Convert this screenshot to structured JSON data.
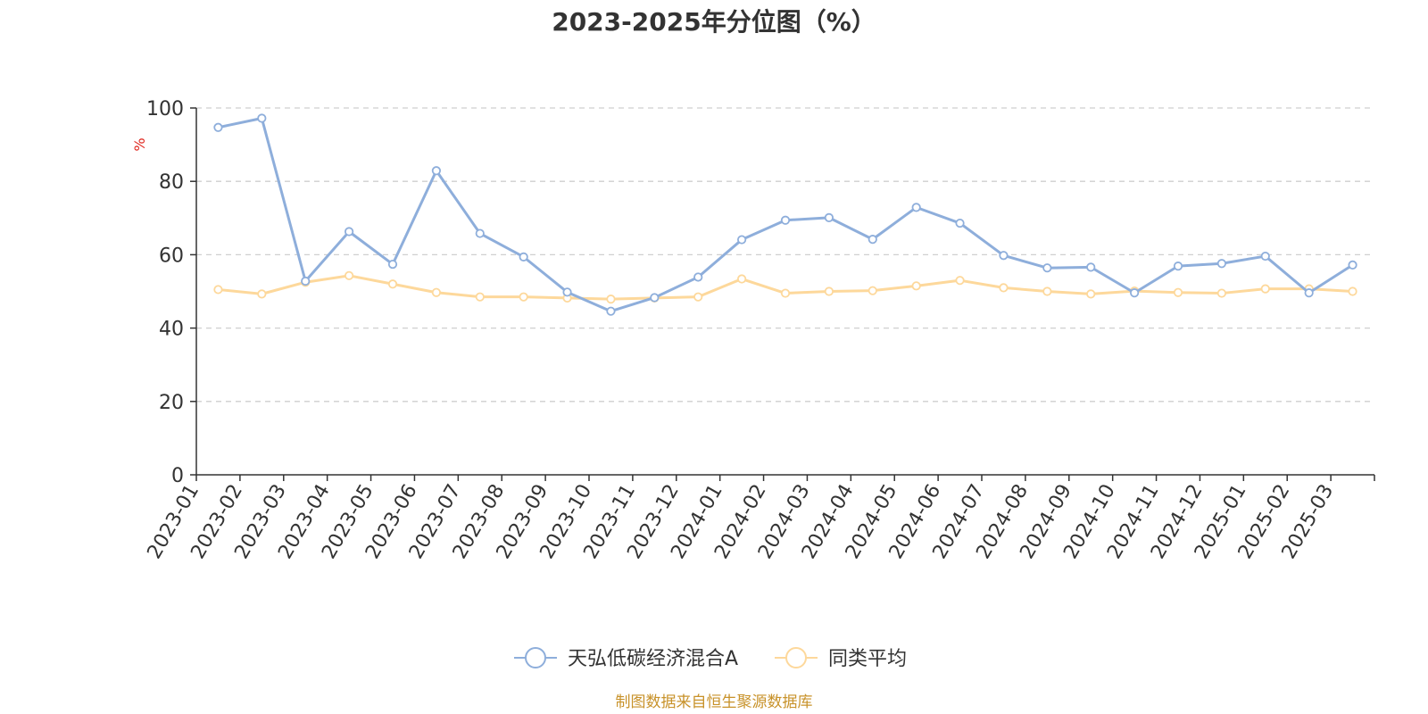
{
  "chart_data": {
    "type": "line",
    "title": "2023-2025年分位图（%）",
    "ylabel": "%",
    "xlabel": "",
    "ylim": [
      0,
      100
    ],
    "yticks": [
      0,
      20,
      40,
      60,
      80,
      100
    ],
    "grid": true,
    "legend_position": "bottom",
    "categories": [
      "2023-01",
      "2023-02",
      "2023-03",
      "2023-04",
      "2023-05",
      "2023-06",
      "2023-07",
      "2023-08",
      "2023-09",
      "2023-10",
      "2023-11",
      "2023-12",
      "2024-01",
      "2024-02",
      "2024-03",
      "2024-04",
      "2024-05",
      "2024-06",
      "2024-07",
      "2024-08",
      "2024-09",
      "2024-10",
      "2024-11",
      "2024-12",
      "2025-01",
      "2025-02",
      "2025-03"
    ],
    "series": [
      {
        "name": "天弘低碳经济混合A",
        "color": "#8eaedb",
        "values": [
          94.7,
          97.2,
          52.8,
          66.3,
          57.4,
          82.9,
          65.8,
          59.4,
          49.8,
          44.6,
          48.3,
          53.9,
          64.1,
          69.4,
          70.1,
          64.2,
          72.9,
          68.6,
          59.8,
          56.4,
          56.6,
          49.6,
          56.9,
          57.6,
          59.6,
          49.6,
          57.2
        ]
      },
      {
        "name": "同类平均",
        "color": "#fdd89b",
        "values": [
          50.5,
          49.3,
          52.5,
          54.3,
          52.0,
          49.7,
          48.5,
          48.5,
          48.2,
          47.9,
          48.2,
          48.5,
          53.4,
          49.5,
          50.0,
          50.2,
          51.5,
          53.0,
          51.0,
          50.0,
          49.3,
          50.1,
          49.7,
          49.5,
          50.7,
          50.7,
          50.0
        ]
      }
    ]
  },
  "footer": {
    "source": "制图数据来自恒生聚源数据库"
  }
}
